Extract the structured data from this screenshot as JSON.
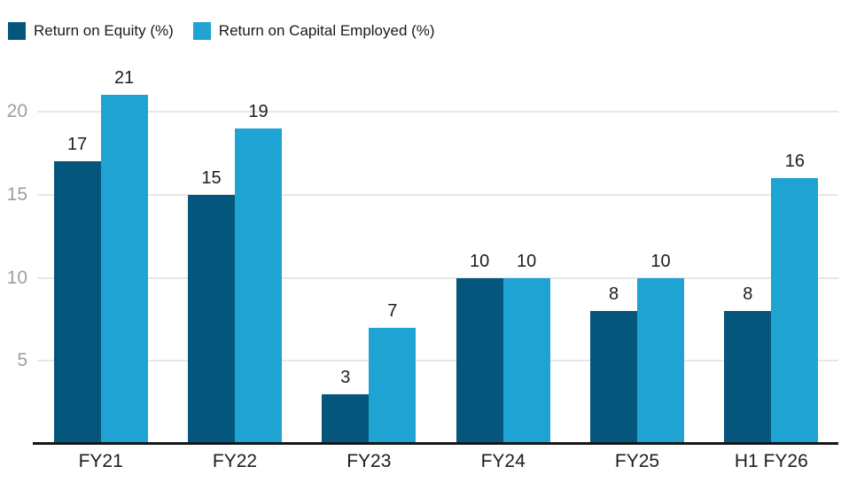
{
  "chart_data": {
    "type": "bar",
    "title": "",
    "xlabel": "",
    "ylabel": "",
    "categories": [
      "FY21",
      "FY22",
      "FY23",
      "FY24",
      "FY25",
      "H1 FY26"
    ],
    "series": [
      {
        "name": "Return on Equity (%)",
        "color": "#05567c",
        "values": [
          17,
          15,
          3,
          10,
          8,
          8
        ]
      },
      {
        "name": "Return on Capital Employed (%)",
        "color": "#1ea3d2",
        "values": [
          21,
          19,
          7,
          10,
          10,
          16
        ]
      }
    ],
    "yticks": [
      5,
      10,
      15,
      20
    ],
    "ylim": [
      0,
      22
    ],
    "grid": "horizontal",
    "legend_position": "top-left",
    "value_labels": true
  },
  "style": {
    "background": "#ffffff",
    "grid_color": "#e7e7e7",
    "axis_color": "#161616",
    "ytick_label_color": "#9e9e9e",
    "xtick_label_color": "#1d1d1d",
    "value_label_color": "#1d1d1d",
    "legend_text_color": "#1a1a1a"
  }
}
